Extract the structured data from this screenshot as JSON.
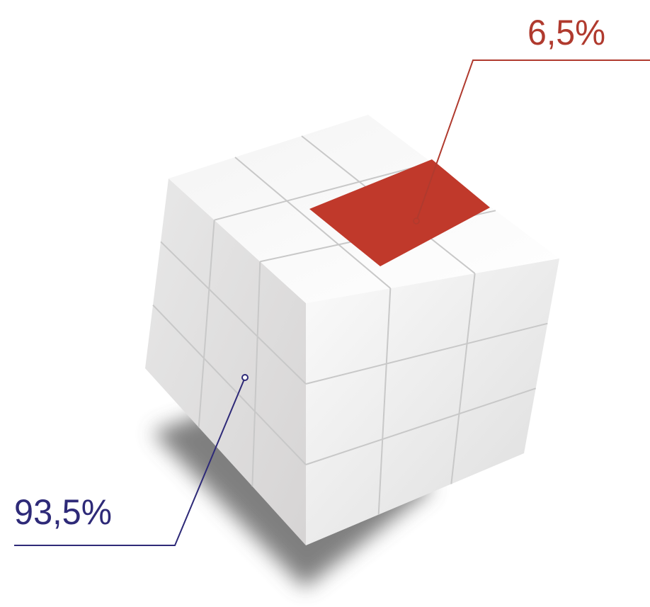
{
  "callouts": [
    {
      "label": "6,5%"
    },
    {
      "label": "93,5%"
    }
  ]
}
